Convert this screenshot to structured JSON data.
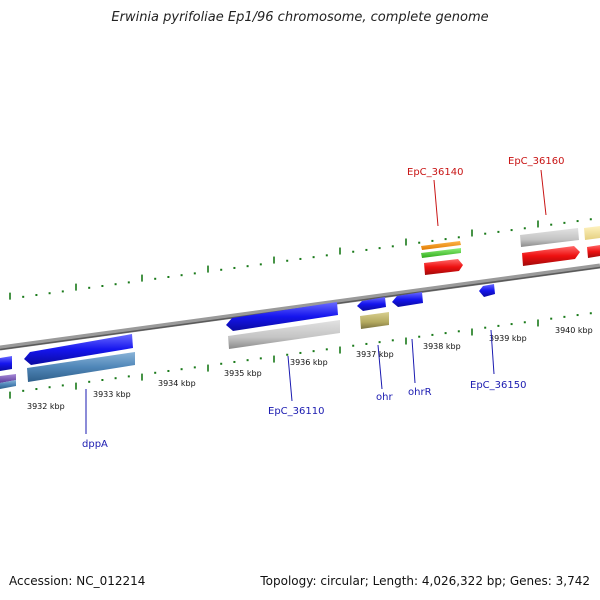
{
  "title": "Erwinia pyrifoliae Ep1/96 chromosome, complete genome",
  "footer": {
    "accession": "Accession: NC_012214",
    "summary": "Topology: circular; Length: 4,026,322 bp; Genes: 3,742"
  },
  "ruler": {
    "labels": [
      "3932 kbp",
      "3933 kbp",
      "3934 kbp",
      "3935 kbp",
      "3936 kbp",
      "3937 kbp",
      "3938 kbp",
      "3939 kbp",
      "3940 kbp"
    ]
  },
  "gene_labels": {
    "dppA": "dppA",
    "EpC_36110": "EpC_36110",
    "ohr": "ohr",
    "ohrR": "ohrR",
    "EpC_36150": "EpC_36150",
    "EpC_36140": "EpC_36140",
    "EpC_36160": "EpC_36160"
  },
  "colors": {
    "blue_label": "#1a1ab0",
    "red_label": "#c81414",
    "tick": "#1a7a1a",
    "backbone": "#7a7a7a"
  }
}
